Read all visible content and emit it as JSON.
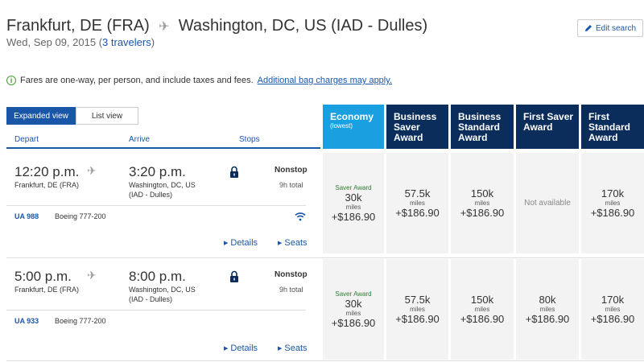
{
  "header": {
    "origin": "Frankfurt, DE (FRA)",
    "destination": "Washington, DC, US (IAD - Dulles)",
    "date": "Wed, Sep 09, 2015",
    "travelers": "3 travelers",
    "edit_search": "Edit search"
  },
  "info": {
    "text": "Fares are one-way, per person, and include taxes and fees.",
    "link": "Additional bag charges may apply."
  },
  "view": {
    "expanded": "Expanded view",
    "list": "List view"
  },
  "columns": {
    "depart": "Depart",
    "arrive": "Arrive",
    "stops": "Stops"
  },
  "cabins": [
    {
      "label": "Economy",
      "sub": "(lowest)",
      "color": "#1a9fe0"
    },
    {
      "label": "Business Saver Award",
      "color": "#0b2d5b"
    },
    {
      "label": "Business Standard Award",
      "color": "#0b2d5b"
    },
    {
      "label": "First Saver Award",
      "color": "#0b2d5b"
    },
    {
      "label": "First Standard Award",
      "color": "#0b2d5b"
    }
  ],
  "flights": [
    {
      "depart_time": "12:20 p.m.",
      "depart_place": "Frankfurt, DE (FRA)",
      "arrive_time": "3:20 p.m.",
      "arrive_place_1": "Washington, DC, US",
      "arrive_place_2": "(IAD - Dulles)",
      "stops": "Nonstop",
      "duration": "9h total",
      "flight_no": "UA 988",
      "aircraft": "Boeing 777-200",
      "details": "Details",
      "seats": "Seats",
      "fares": [
        {
          "saver": "Saver Award",
          "miles": "30k",
          "unit": "miles",
          "price": "+$186.90"
        },
        {
          "saver": "",
          "miles": "57.5k",
          "unit": "miles",
          "price": "+$186.90"
        },
        {
          "saver": "",
          "miles": "150k",
          "unit": "miles",
          "price": "+$186.90"
        },
        {
          "na": "Not available"
        },
        {
          "saver": "",
          "miles": "170k",
          "unit": "miles",
          "price": "+$186.90"
        }
      ]
    },
    {
      "depart_time": "5:00 p.m.",
      "depart_place": "Frankfurt, DE (FRA)",
      "arrive_time": "8:00 p.m.",
      "arrive_place_1": "Washington, DC, US",
      "arrive_place_2": "(IAD - Dulles)",
      "stops": "Nonstop",
      "duration": "9h total",
      "flight_no": "UA 933",
      "aircraft": "Boeing 777-200",
      "details": "Details",
      "seats": "Seats",
      "fares": [
        {
          "saver": "Saver Award",
          "miles": "30k",
          "unit": "miles",
          "price": "+$186.90"
        },
        {
          "saver": "",
          "miles": "57.5k",
          "unit": "miles",
          "price": "+$186.90"
        },
        {
          "saver": "",
          "miles": "150k",
          "unit": "miles",
          "price": "+$186.90"
        },
        {
          "saver": "",
          "miles": "80k",
          "unit": "miles",
          "price": "+$186.90"
        },
        {
          "saver": "",
          "miles": "170k",
          "unit": "miles",
          "price": "+$186.90"
        }
      ]
    }
  ]
}
